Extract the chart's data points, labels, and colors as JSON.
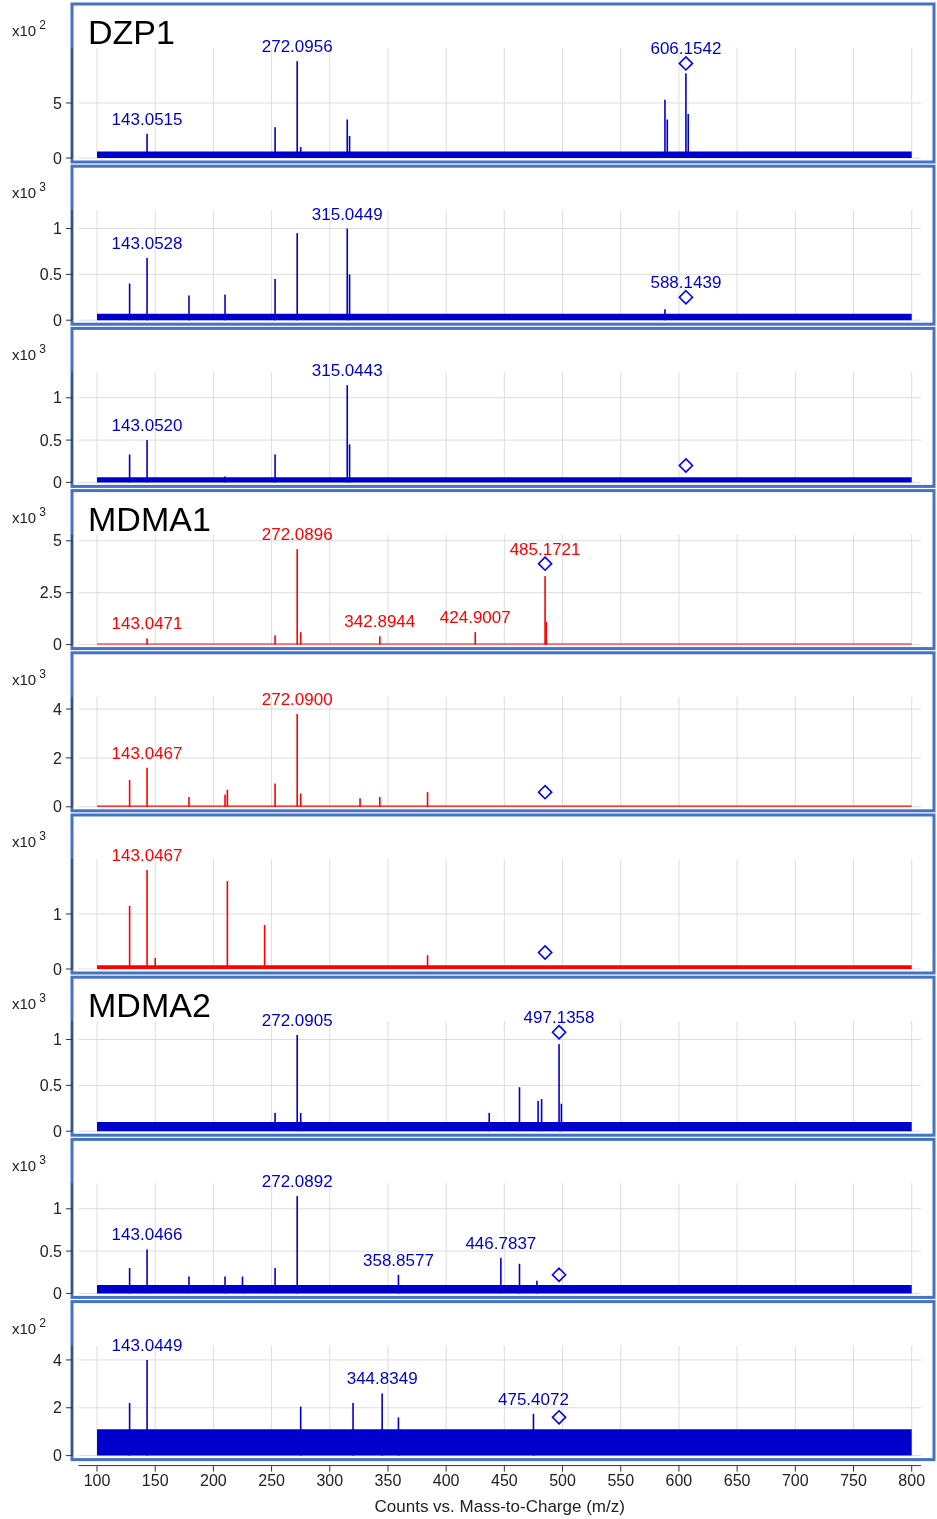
{
  "chart_data": [
    {
      "type": "bar",
      "title": "DZP1",
      "ylabel": "x10$^{2}$",
      "xlim": [
        84,
        808
      ],
      "xticks": [
        100,
        150,
        200,
        250,
        300,
        350,
        400,
        450,
        500,
        550,
        600,
        650,
        700,
        750,
        800
      ],
      "ylim": [
        0,
        10
      ],
      "yticks": [
        0,
        5
      ],
      "grid": true,
      "tick_labels": "y",
      "series": [
        {
          "type": "area",
          "color": "#0000cc",
          "x": [
            100,
            800
          ],
          "values": [
            0.6,
            0.6
          ]
        },
        {
          "color": "#0000cc",
          "x": [
            143,
            253,
            272,
            275,
            315,
            317,
            588,
            590,
            606,
            608
          ],
          "values": [
            2.2,
            2.8,
            8.8,
            1.0,
            3.5,
            2.0,
            5.3,
            3.5,
            7.7,
            4.0
          ]
        },
        {
          "type": "scatter",
          "marker": "diamond",
          "color": "#0000ff",
          "x": [
            606
          ],
          "values": [
            8.6
          ]
        }
      ],
      "annotations": [
        {
          "text": "143.0515",
          "x": 143,
          "y": 2.2
        },
        {
          "text": "272.0956",
          "x": 272,
          "y": 8.8
        },
        {
          "text": "606.1542",
          "x": 606,
          "y": 8.6
        }
      ]
    },
    {
      "type": "bar",
      "ylabel": "x10$^{3}$",
      "xlim": [
        84,
        808
      ],
      "xticks": [
        100,
        150,
        200,
        250,
        300,
        350,
        400,
        450,
        500,
        550,
        600,
        650,
        700,
        750,
        800
      ],
      "ylim": [
        0,
        1.2
      ],
      "yticks": [
        0,
        0.5,
        1
      ],
      "grid": true,
      "tick_labels": "y",
      "series": [
        {
          "type": "area",
          "color": "#0000cc",
          "x": [
            100,
            800
          ],
          "values": [
            0.07,
            0.07
          ]
        },
        {
          "color": "#0000cc",
          "x": [
            128,
            143,
            179,
            210,
            253,
            272,
            315,
            317,
            588
          ],
          "values": [
            0.4,
            0.68,
            0.27,
            0.28,
            0.45,
            0.95,
            1.0,
            0.5,
            0.12
          ]
        },
        {
          "type": "scatter",
          "marker": "diamond",
          "color": "#0000ff",
          "x": [
            606
          ],
          "values": [
            0.25
          ]
        }
      ],
      "annotations": [
        {
          "text": "143.0528",
          "x": 143,
          "y": 0.68
        },
        {
          "text": "315.0449",
          "x": 315,
          "y": 1.0
        },
        {
          "text": "588.1439",
          "x": 606,
          "y": 0.25
        }
      ]
    },
    {
      "type": "bar",
      "ylabel": "x10$^{3}$",
      "xlim": [
        84,
        808
      ],
      "xticks": [
        100,
        150,
        200,
        250,
        300,
        350,
        400,
        450,
        500,
        550,
        600,
        650,
        700,
        750,
        800
      ],
      "ylim": [
        0,
        1.3
      ],
      "yticks": [
        0,
        0.5,
        1
      ],
      "grid": true,
      "tick_labels": "y",
      "series": [
        {
          "type": "area",
          "color": "#0000cc",
          "x": [
            100,
            800
          ],
          "values": [
            0.06,
            0.06
          ]
        },
        {
          "color": "#0000cc",
          "x": [
            128,
            143,
            210,
            253,
            315,
            317
          ],
          "values": [
            0.33,
            0.5,
            0.07,
            0.33,
            1.15,
            0.45
          ]
        },
        {
          "type": "scatter",
          "marker": "diamond",
          "color": "#0000ff",
          "x": [
            606
          ],
          "values": [
            0.2
          ]
        }
      ],
      "annotations": [
        {
          "text": "143.0520",
          "x": 143,
          "y": 0.5
        },
        {
          "text": "315.0443",
          "x": 315,
          "y": 1.15
        }
      ]
    },
    {
      "type": "bar",
      "title": "MDMA1",
      "ylabel": "x10$^{3}$",
      "xlim": [
        84,
        808
      ],
      "xticks": [
        100,
        150,
        200,
        250,
        300,
        350,
        400,
        450,
        500,
        550,
        600,
        650,
        700,
        750,
        800
      ],
      "ylim": [
        0,
        5.3
      ],
      "yticks": [
        0,
        2.5,
        5
      ],
      "grid": true,
      "tick_labels": "y",
      "series": [
        {
          "type": "area",
          "color": "#ff0000",
          "x": [
            100,
            800
          ],
          "values": [
            0.05,
            0.05
          ]
        },
        {
          "color": "#ff0000",
          "x": [
            143,
            253,
            272,
            275,
            343,
            425,
            485,
            486
          ],
          "values": [
            0.3,
            0.45,
            4.6,
            0.6,
            0.4,
            0.6,
            3.3,
            1.1
          ]
        },
        {
          "type": "scatter",
          "marker": "diamond",
          "color": "#0000ff",
          "x": [
            485
          ],
          "values": [
            3.9
          ]
        }
      ],
      "annotations": [
        {
          "text": "143.0471",
          "x": 143,
          "y": 0.3
        },
        {
          "text": "272.0896",
          "x": 272,
          "y": 4.6
        },
        {
          "text": "342.8944",
          "x": 343,
          "y": 0.4
        },
        {
          "text": "424.9007",
          "x": 425,
          "y": 0.6
        },
        {
          "text": "485.1721",
          "x": 485,
          "y": 3.9
        }
      ]
    },
    {
      "type": "bar",
      "ylabel": "x10$^{3}$",
      "xlim": [
        84,
        808
      ],
      "xticks": [
        100,
        150,
        200,
        250,
        300,
        350,
        400,
        450,
        500,
        550,
        600,
        650,
        700,
        750,
        800
      ],
      "ylim": [
        0,
        4.5
      ],
      "yticks": [
        0,
        2,
        4
      ],
      "grid": true,
      "tick_labels": "y",
      "series": [
        {
          "type": "area",
          "color": "#ff0000",
          "x": [
            100,
            800
          ],
          "values": [
            0.05,
            0.05
          ]
        },
        {
          "color": "#ff0000",
          "x": [
            128,
            143,
            179,
            210,
            212,
            253,
            272,
            275,
            326,
            343,
            384
          ],
          "values": [
            1.1,
            1.6,
            0.4,
            0.5,
            0.7,
            0.95,
            3.8,
            0.55,
            0.35,
            0.4,
            0.6
          ]
        },
        {
          "type": "scatter",
          "marker": "diamond",
          "color": "#0000ff",
          "x": [
            485
          ],
          "values": [
            0.6
          ]
        }
      ],
      "annotations": [
        {
          "text": "143.0467",
          "x": 143,
          "y": 1.6
        },
        {
          "text": "272.0900",
          "x": 272,
          "y": 3.8
        }
      ]
    },
    {
      "type": "bar",
      "ylabel": "x10$^{3}$",
      "xlim": [
        84,
        808
      ],
      "xticks": [
        100,
        150,
        200,
        250,
        300,
        350,
        400,
        450,
        500,
        550,
        600,
        650,
        700,
        750,
        800
      ],
      "ylim": [
        0,
        2
      ],
      "yticks": [
        0,
        1
      ],
      "grid": true,
      "tick_labels": "y",
      "series": [
        {
          "type": "area",
          "color": "#ff0000",
          "x": [
            100,
            800
          ],
          "values": [
            0.07,
            0.07
          ]
        },
        {
          "color": "#ff0000",
          "x": [
            128,
            143,
            150,
            212,
            244,
            384
          ],
          "values": [
            1.15,
            1.8,
            0.2,
            1.6,
            0.8,
            0.25
          ]
        },
        {
          "type": "scatter",
          "marker": "diamond",
          "color": "#0000ff",
          "x": [
            485
          ],
          "values": [
            0.3
          ]
        }
      ],
      "annotations": [
        {
          "text": "143.0467",
          "x": 143,
          "y": 1.8
        }
      ]
    },
    {
      "type": "bar",
      "title": "MDMA2",
      "ylabel": "x10$^{3}$",
      "xlim": [
        84,
        808
      ],
      "xticks": [
        100,
        150,
        200,
        250,
        300,
        350,
        400,
        450,
        500,
        550,
        600,
        650,
        700,
        750,
        800
      ],
      "ylim": [
        0,
        1.2
      ],
      "yticks": [
        0,
        0.5,
        1
      ],
      "grid": true,
      "tick_labels": "y",
      "series": [
        {
          "type": "area",
          "color": "#0000cc",
          "x": [
            100,
            800
          ],
          "values": [
            0.1,
            0.1
          ]
        },
        {
          "color": "#0000cc",
          "x": [
            253,
            272,
            275,
            437,
            463,
            479,
            482,
            497,
            499
          ],
          "values": [
            0.2,
            1.05,
            0.2,
            0.2,
            0.48,
            0.33,
            0.35,
            0.95,
            0.3
          ]
        },
        {
          "type": "scatter",
          "marker": "diamond",
          "color": "#0000ff",
          "x": [
            497
          ],
          "values": [
            1.08
          ]
        }
      ],
      "annotations": [
        {
          "text": "272.0905",
          "x": 272,
          "y": 1.05
        },
        {
          "text": "497.1358",
          "x": 497,
          "y": 1.08
        }
      ]
    },
    {
      "type": "bar",
      "ylabel": "x10$^{3}$",
      "xlim": [
        84,
        808
      ],
      "xticks": [
        100,
        150,
        200,
        250,
        300,
        350,
        400,
        450,
        500,
        550,
        600,
        650,
        700,
        750,
        800
      ],
      "ylim": [
        0,
        1.3
      ],
      "yticks": [
        0,
        0.5,
        1
      ],
      "grid": true,
      "tick_labels": "y",
      "series": [
        {
          "type": "area",
          "color": "#0000cc",
          "x": [
            100,
            800
          ],
          "values": [
            0.1,
            0.1
          ]
        },
        {
          "color": "#0000cc",
          "x": [
            128,
            143,
            179,
            210,
            225,
            253,
            272,
            359,
            447,
            463,
            478
          ],
          "values": [
            0.3,
            0.52,
            0.2,
            0.2,
            0.2,
            0.3,
            1.15,
            0.22,
            0.42,
            0.35,
            0.15
          ]
        },
        {
          "type": "scatter",
          "marker": "diamond",
          "color": "#0000ff",
          "x": [
            497
          ],
          "values": [
            0.22
          ]
        }
      ],
      "annotations": [
        {
          "text": "143.0466",
          "x": 143,
          "y": 0.52
        },
        {
          "text": "272.0892",
          "x": 272,
          "y": 1.15
        },
        {
          "text": "358.8577",
          "x": 359,
          "y": 0.22
        },
        {
          "text": "446.7837",
          "x": 447,
          "y": 0.42
        }
      ]
    },
    {
      "type": "bar",
      "ylabel": "x10$^{2}$",
      "xlabel": "Counts vs. Mass-to-Charge (m/z)",
      "xlim": [
        84,
        808
      ],
      "xticks": [
        100,
        150,
        200,
        250,
        300,
        350,
        400,
        450,
        500,
        550,
        600,
        650,
        700,
        750,
        800
      ],
      "ylim": [
        0,
        4.6
      ],
      "yticks": [
        0,
        2,
        4
      ],
      "grid": true,
      "series": [
        {
          "type": "area",
          "color": "#0000cc",
          "x": [
            100,
            800
          ],
          "values": [
            1.1,
            1.1
          ]
        },
        {
          "color": "#0000cc",
          "x": [
            128,
            143,
            275,
            320,
            345,
            359,
            475
          ],
          "values": [
            2.2,
            4.0,
            2.05,
            2.2,
            2.6,
            1.6,
            1.75
          ]
        },
        {
          "type": "scatter",
          "marker": "diamond",
          "color": "#0000ff",
          "x": [
            497
          ],
          "values": [
            1.6
          ]
        }
      ],
      "annotations": [
        {
          "text": "143.0449",
          "x": 143,
          "y": 4.0
        },
        {
          "text": "344.8349",
          "x": 345,
          "y": 2.6
        },
        {
          "text": "475.4072",
          "x": 475,
          "y": 1.75
        }
      ]
    }
  ]
}
